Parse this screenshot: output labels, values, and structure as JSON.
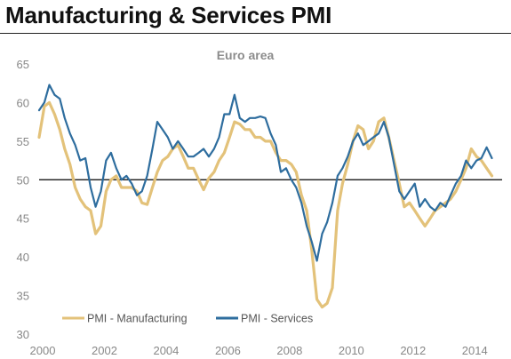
{
  "page": {
    "title": "Manufacturing & Services PMI"
  },
  "chart_data": {
    "type": "line",
    "subtitle": "Euro area",
    "xlim": [
      2000,
      2015
    ],
    "ylim": [
      30,
      65
    ],
    "x_ticks": [
      2000,
      2002,
      2004,
      2006,
      2008,
      2010,
      2012,
      2014
    ],
    "y_ticks": [
      30,
      35,
      40,
      45,
      50,
      55,
      60,
      65
    ],
    "reference_line": 50,
    "grid": false,
    "legend_position": "bottom-left",
    "series": [
      {
        "name": "PMI - Manufacturing",
        "color": "#e3c27a",
        "x": [
          2000.0,
          2000.17,
          2000.33,
          2000.5,
          2000.67,
          2000.83,
          2001.0,
          2001.17,
          2001.33,
          2001.5,
          2001.67,
          2001.83,
          2002.0,
          2002.17,
          2002.33,
          2002.5,
          2002.67,
          2002.83,
          2003.0,
          2003.17,
          2003.33,
          2003.5,
          2003.67,
          2003.83,
          2004.0,
          2004.17,
          2004.33,
          2004.5,
          2004.67,
          2004.83,
          2005.0,
          2005.17,
          2005.33,
          2005.5,
          2005.67,
          2005.83,
          2006.0,
          2006.17,
          2006.33,
          2006.5,
          2006.67,
          2006.83,
          2007.0,
          2007.17,
          2007.33,
          2007.5,
          2007.67,
          2007.83,
          2008.0,
          2008.17,
          2008.33,
          2008.5,
          2008.67,
          2008.83,
          2009.0,
          2009.17,
          2009.33,
          2009.5,
          2009.67,
          2009.83,
          2010.0,
          2010.17,
          2010.33,
          2010.5,
          2010.67,
          2010.83,
          2011.0,
          2011.17,
          2011.33,
          2011.5,
          2011.67,
          2011.83,
          2012.0,
          2012.17,
          2012.33,
          2012.5,
          2012.67,
          2012.83,
          2013.0,
          2013.17,
          2013.33,
          2013.5,
          2013.67,
          2013.83,
          2014.0,
          2014.17,
          2014.33,
          2014.5,
          2014.67
        ],
        "values": [
          55.5,
          59.5,
          60.0,
          58.5,
          56.5,
          54.0,
          52.0,
          49.0,
          47.5,
          46.5,
          46.0,
          43.0,
          44.0,
          48.5,
          50.0,
          50.5,
          49.0,
          49.0,
          49.0,
          48.5,
          47.0,
          46.8,
          49.0,
          51.0,
          52.5,
          53.0,
          54.0,
          54.5,
          53.0,
          51.5,
          51.5,
          50.0,
          48.7,
          50.2,
          51.0,
          52.5,
          53.5,
          55.5,
          57.5,
          57.2,
          56.5,
          56.5,
          55.5,
          55.5,
          55.0,
          55.0,
          53.5,
          52.5,
          52.5,
          52.0,
          51.0,
          48.0,
          46.0,
          41.0,
          34.5,
          33.5,
          34.0,
          36.0,
          46.0,
          49.5,
          52.0,
          55.0,
          57.0,
          56.5,
          54.0,
          55.0,
          57.5,
          58.0,
          55.5,
          52.5,
          49.5,
          46.5,
          47.0,
          46.0,
          45.0,
          44.0,
          45.0,
          46.0,
          46.5,
          47.0,
          47.5,
          48.5,
          50.0,
          51.5,
          54.0,
          53.0,
          52.5,
          51.5,
          50.5
        ]
      },
      {
        "name": "PMI - Services",
        "color": "#2e6d9e",
        "x": [
          2000.0,
          2000.17,
          2000.33,
          2000.5,
          2000.67,
          2000.83,
          2001.0,
          2001.17,
          2001.33,
          2001.5,
          2001.67,
          2001.83,
          2002.0,
          2002.17,
          2002.33,
          2002.5,
          2002.67,
          2002.83,
          2003.0,
          2003.17,
          2003.33,
          2003.5,
          2003.67,
          2003.83,
          2004.0,
          2004.17,
          2004.33,
          2004.5,
          2004.67,
          2004.83,
          2005.0,
          2005.17,
          2005.33,
          2005.5,
          2005.67,
          2005.83,
          2006.0,
          2006.17,
          2006.33,
          2006.5,
          2006.67,
          2006.83,
          2007.0,
          2007.17,
          2007.33,
          2007.5,
          2007.67,
          2007.83,
          2008.0,
          2008.17,
          2008.33,
          2008.5,
          2008.67,
          2008.83,
          2009.0,
          2009.17,
          2009.33,
          2009.5,
          2009.67,
          2009.83,
          2010.0,
          2010.17,
          2010.33,
          2010.5,
          2010.67,
          2010.83,
          2011.0,
          2011.17,
          2011.33,
          2011.5,
          2011.67,
          2011.83,
          2012.0,
          2012.17,
          2012.33,
          2012.5,
          2012.67,
          2012.83,
          2013.0,
          2013.17,
          2013.33,
          2013.5,
          2013.67,
          2013.83,
          2014.0,
          2014.17,
          2014.33,
          2014.5,
          2014.67
        ],
        "values": [
          59.0,
          60.0,
          62.3,
          61.0,
          60.5,
          58.0,
          56.0,
          54.5,
          52.5,
          52.8,
          49.0,
          46.5,
          48.5,
          52.5,
          53.5,
          51.5,
          50.0,
          50.5,
          49.5,
          48.0,
          48.5,
          50.5,
          54.0,
          57.5,
          56.5,
          55.5,
          54.0,
          55.0,
          54.0,
          53.0,
          53.0,
          53.5,
          54.0,
          53.0,
          54.0,
          55.5,
          58.5,
          58.5,
          61.0,
          58.0,
          57.5,
          58.0,
          58.0,
          58.2,
          58.0,
          56.0,
          54.5,
          51.0,
          51.5,
          50.0,
          49.0,
          47.0,
          44.0,
          42.0,
          39.5,
          43.0,
          44.5,
          47.0,
          50.5,
          51.5,
          53.0,
          55.0,
          56.0,
          54.5,
          55.0,
          55.5,
          56.0,
          57.5,
          55.5,
          52.0,
          48.5,
          47.5,
          48.5,
          49.5,
          46.5,
          47.5,
          46.5,
          46.0,
          47.0,
          46.5,
          48.0,
          49.5,
          50.5,
          52.5,
          51.5,
          52.5,
          52.8,
          54.2,
          52.8
        ]
      }
    ]
  }
}
